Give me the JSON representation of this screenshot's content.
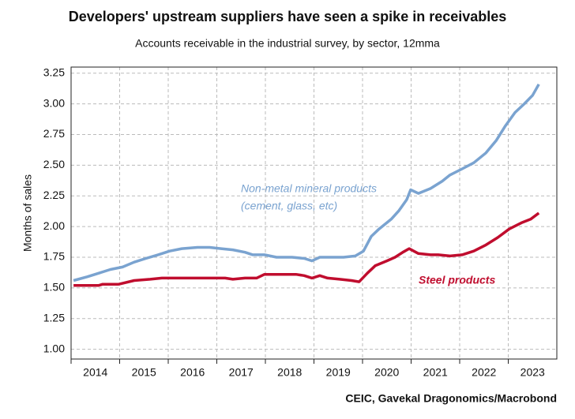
{
  "chart_data": {
    "type": "line",
    "title": "Developers' upstream suppliers have seen a spike in receivables",
    "subtitle": "Accounts receivable in the industrial survey, by sector, 12mma",
    "y_label": "Months of sales",
    "source": "CEIC, Gavekal Dragonomics/Macrobond",
    "annotations": [
      "Non-metal mineral products",
      "(cement, glass, etc)",
      "Steel products"
    ],
    "grid": true,
    "xlim": [
      2014,
      2024
    ],
    "xticks": [
      2014,
      2015,
      2016,
      2017,
      2018,
      2019,
      2020,
      2021,
      2022,
      2023
    ],
    "ylim": [
      0.92,
      3.3
    ],
    "yticks": [
      {
        "value": 1,
        "label": "1.00"
      },
      {
        "value": 1.25,
        "label": "1.25"
      },
      {
        "value": 1.5,
        "label": "1.50"
      },
      {
        "value": 1.75,
        "label": "1.75"
      },
      {
        "value": 2,
        "label": "2.00"
      },
      {
        "value": 2.25,
        "label": "2.25"
      },
      {
        "value": 2.5,
        "label": "2.50"
      },
      {
        "value": 2.75,
        "label": "2.75"
      },
      {
        "value": 3,
        "label": "3.00"
      },
      {
        "value": 3.25,
        "label": "3.25"
      }
    ],
    "series": [
      {
        "name": "Non-metal mineral products",
        "color": "#7aa3d0",
        "x": [
          2014.05,
          2014.33,
          2014.57,
          2014.81,
          2015.06,
          2015.3,
          2015.54,
          2015.79,
          2016.03,
          2016.28,
          2016.6,
          2016.85,
          2017.09,
          2017.33,
          2017.58,
          2017.74,
          2017.98,
          2018.23,
          2018.55,
          2018.8,
          2018.96,
          2019.12,
          2019.37,
          2019.61,
          2019.85,
          2020.02,
          2020.18,
          2020.34,
          2020.59,
          2020.75,
          2020.91,
          2020.99,
          2021.15,
          2021.4,
          2021.64,
          2021.8,
          2022.05,
          2022.29,
          2022.54,
          2022.75,
          2022.94,
          2023.14,
          2023.33,
          2023.5,
          2023.63
        ],
        "values": [
          1.56,
          1.59,
          1.62,
          1.65,
          1.67,
          1.71,
          1.74,
          1.77,
          1.8,
          1.82,
          1.83,
          1.83,
          1.82,
          1.81,
          1.79,
          1.77,
          1.77,
          1.75,
          1.75,
          1.74,
          1.72,
          1.75,
          1.75,
          1.75,
          1.76,
          1.8,
          1.92,
          1.98,
          2.06,
          2.13,
          2.22,
          2.3,
          2.27,
          2.31,
          2.37,
          2.42,
          2.47,
          2.52,
          2.6,
          2.7,
          2.82,
          2.93,
          3.0,
          3.07,
          3.16
        ]
      },
      {
        "name": "Steel products",
        "color": "#c00d2e",
        "x": [
          2014.05,
          2014.57,
          2014.65,
          2014.98,
          2015.3,
          2015.63,
          2015.87,
          2016.28,
          2016.76,
          2017.17,
          2017.33,
          2017.58,
          2017.82,
          2017.98,
          2018.39,
          2018.63,
          2018.8,
          2018.96,
          2019.12,
          2019.28,
          2019.53,
          2019.77,
          2019.93,
          2020.1,
          2020.26,
          2020.5,
          2020.67,
          2020.83,
          2020.96,
          2021.15,
          2021.4,
          2021.56,
          2021.8,
          2022.05,
          2022.29,
          2022.54,
          2022.78,
          2023.02,
          2023.27,
          2023.46,
          2023.63
        ],
        "values": [
          1.52,
          1.52,
          1.53,
          1.53,
          1.56,
          1.57,
          1.58,
          1.58,
          1.58,
          1.58,
          1.57,
          1.58,
          1.58,
          1.61,
          1.61,
          1.61,
          1.6,
          1.58,
          1.6,
          1.58,
          1.57,
          1.56,
          1.55,
          1.62,
          1.68,
          1.72,
          1.75,
          1.79,
          1.82,
          1.78,
          1.77,
          1.77,
          1.76,
          1.77,
          1.8,
          1.85,
          1.91,
          1.98,
          2.03,
          2.06,
          2.11
        ]
      }
    ]
  }
}
